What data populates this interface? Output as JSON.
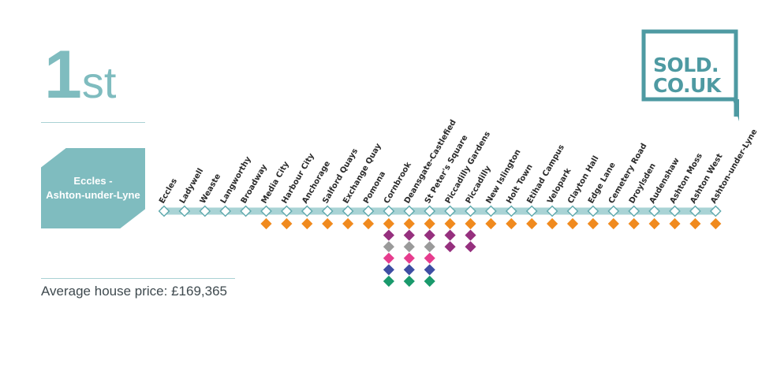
{
  "rank": {
    "number": "1",
    "suffix": "st"
  },
  "route": {
    "line1": "Eccles -",
    "line2": "Ashton-under-Lyne"
  },
  "average_price": {
    "label": "Average house price:",
    "value": "£169,365"
  },
  "logo": {
    "line1": "SOLD.",
    "line2": "CO.UK"
  },
  "colors": {
    "track": "#a9d3d5",
    "orange": "#f08a1e",
    "purple": "#96307e",
    "grey": "#9a9a9a",
    "pink": "#e63c8e",
    "blue": "#3e4ea3",
    "green": "#1a9a6c",
    "teal": "#7fbcbf"
  },
  "stations": [
    {
      "name": "Eccles",
      "lines": []
    },
    {
      "name": "Ladywell",
      "lines": []
    },
    {
      "name": "Weaste",
      "lines": []
    },
    {
      "name": "Langworthy",
      "lines": []
    },
    {
      "name": "Broadway",
      "lines": []
    },
    {
      "name": "Media City",
      "lines": [
        "orange"
      ]
    },
    {
      "name": "Harbour City",
      "lines": [
        "orange"
      ]
    },
    {
      "name": "Anchorage",
      "lines": [
        "orange"
      ]
    },
    {
      "name": "Salford Quays",
      "lines": [
        "orange"
      ]
    },
    {
      "name": "Exchange Quay",
      "lines": [
        "orange"
      ]
    },
    {
      "name": "Pomona",
      "lines": [
        "orange"
      ]
    },
    {
      "name": "Cornbrook",
      "lines": [
        "orange",
        "purple",
        "grey",
        "pink",
        "blue",
        "green"
      ]
    },
    {
      "name": "Deansgate-Castlefied",
      "lines": [
        "orange",
        "purple",
        "grey",
        "pink",
        "blue",
        "green"
      ]
    },
    {
      "name": "St Peter's Square",
      "lines": [
        "orange",
        "purple",
        "grey",
        "pink",
        "blue",
        "green"
      ]
    },
    {
      "name": "Piccadilly Gardens",
      "lines": [
        "orange",
        "purple",
        "purple"
      ]
    },
    {
      "name": "Piccadilly",
      "lines": [
        "orange",
        "purple",
        "purple"
      ]
    },
    {
      "name": "New Islington",
      "lines": [
        "orange"
      ]
    },
    {
      "name": "Holt Town",
      "lines": [
        "orange"
      ]
    },
    {
      "name": "Etihad Campus",
      "lines": [
        "orange"
      ]
    },
    {
      "name": "Velopark",
      "lines": [
        "orange"
      ]
    },
    {
      "name": "Clayton Hall",
      "lines": [
        "orange"
      ]
    },
    {
      "name": "Edge Lane",
      "lines": [
        "orange"
      ]
    },
    {
      "name": "Cemetery Road",
      "lines": [
        "orange"
      ]
    },
    {
      "name": "Droylsden",
      "lines": [
        "orange"
      ]
    },
    {
      "name": "Audenshaw",
      "lines": [
        "orange"
      ]
    },
    {
      "name": "Ashton Moss",
      "lines": [
        "orange"
      ]
    },
    {
      "name": "Ashton West",
      "lines": [
        "orange"
      ]
    },
    {
      "name": "Ashton-under-Lyne",
      "lines": [
        "orange"
      ]
    }
  ]
}
